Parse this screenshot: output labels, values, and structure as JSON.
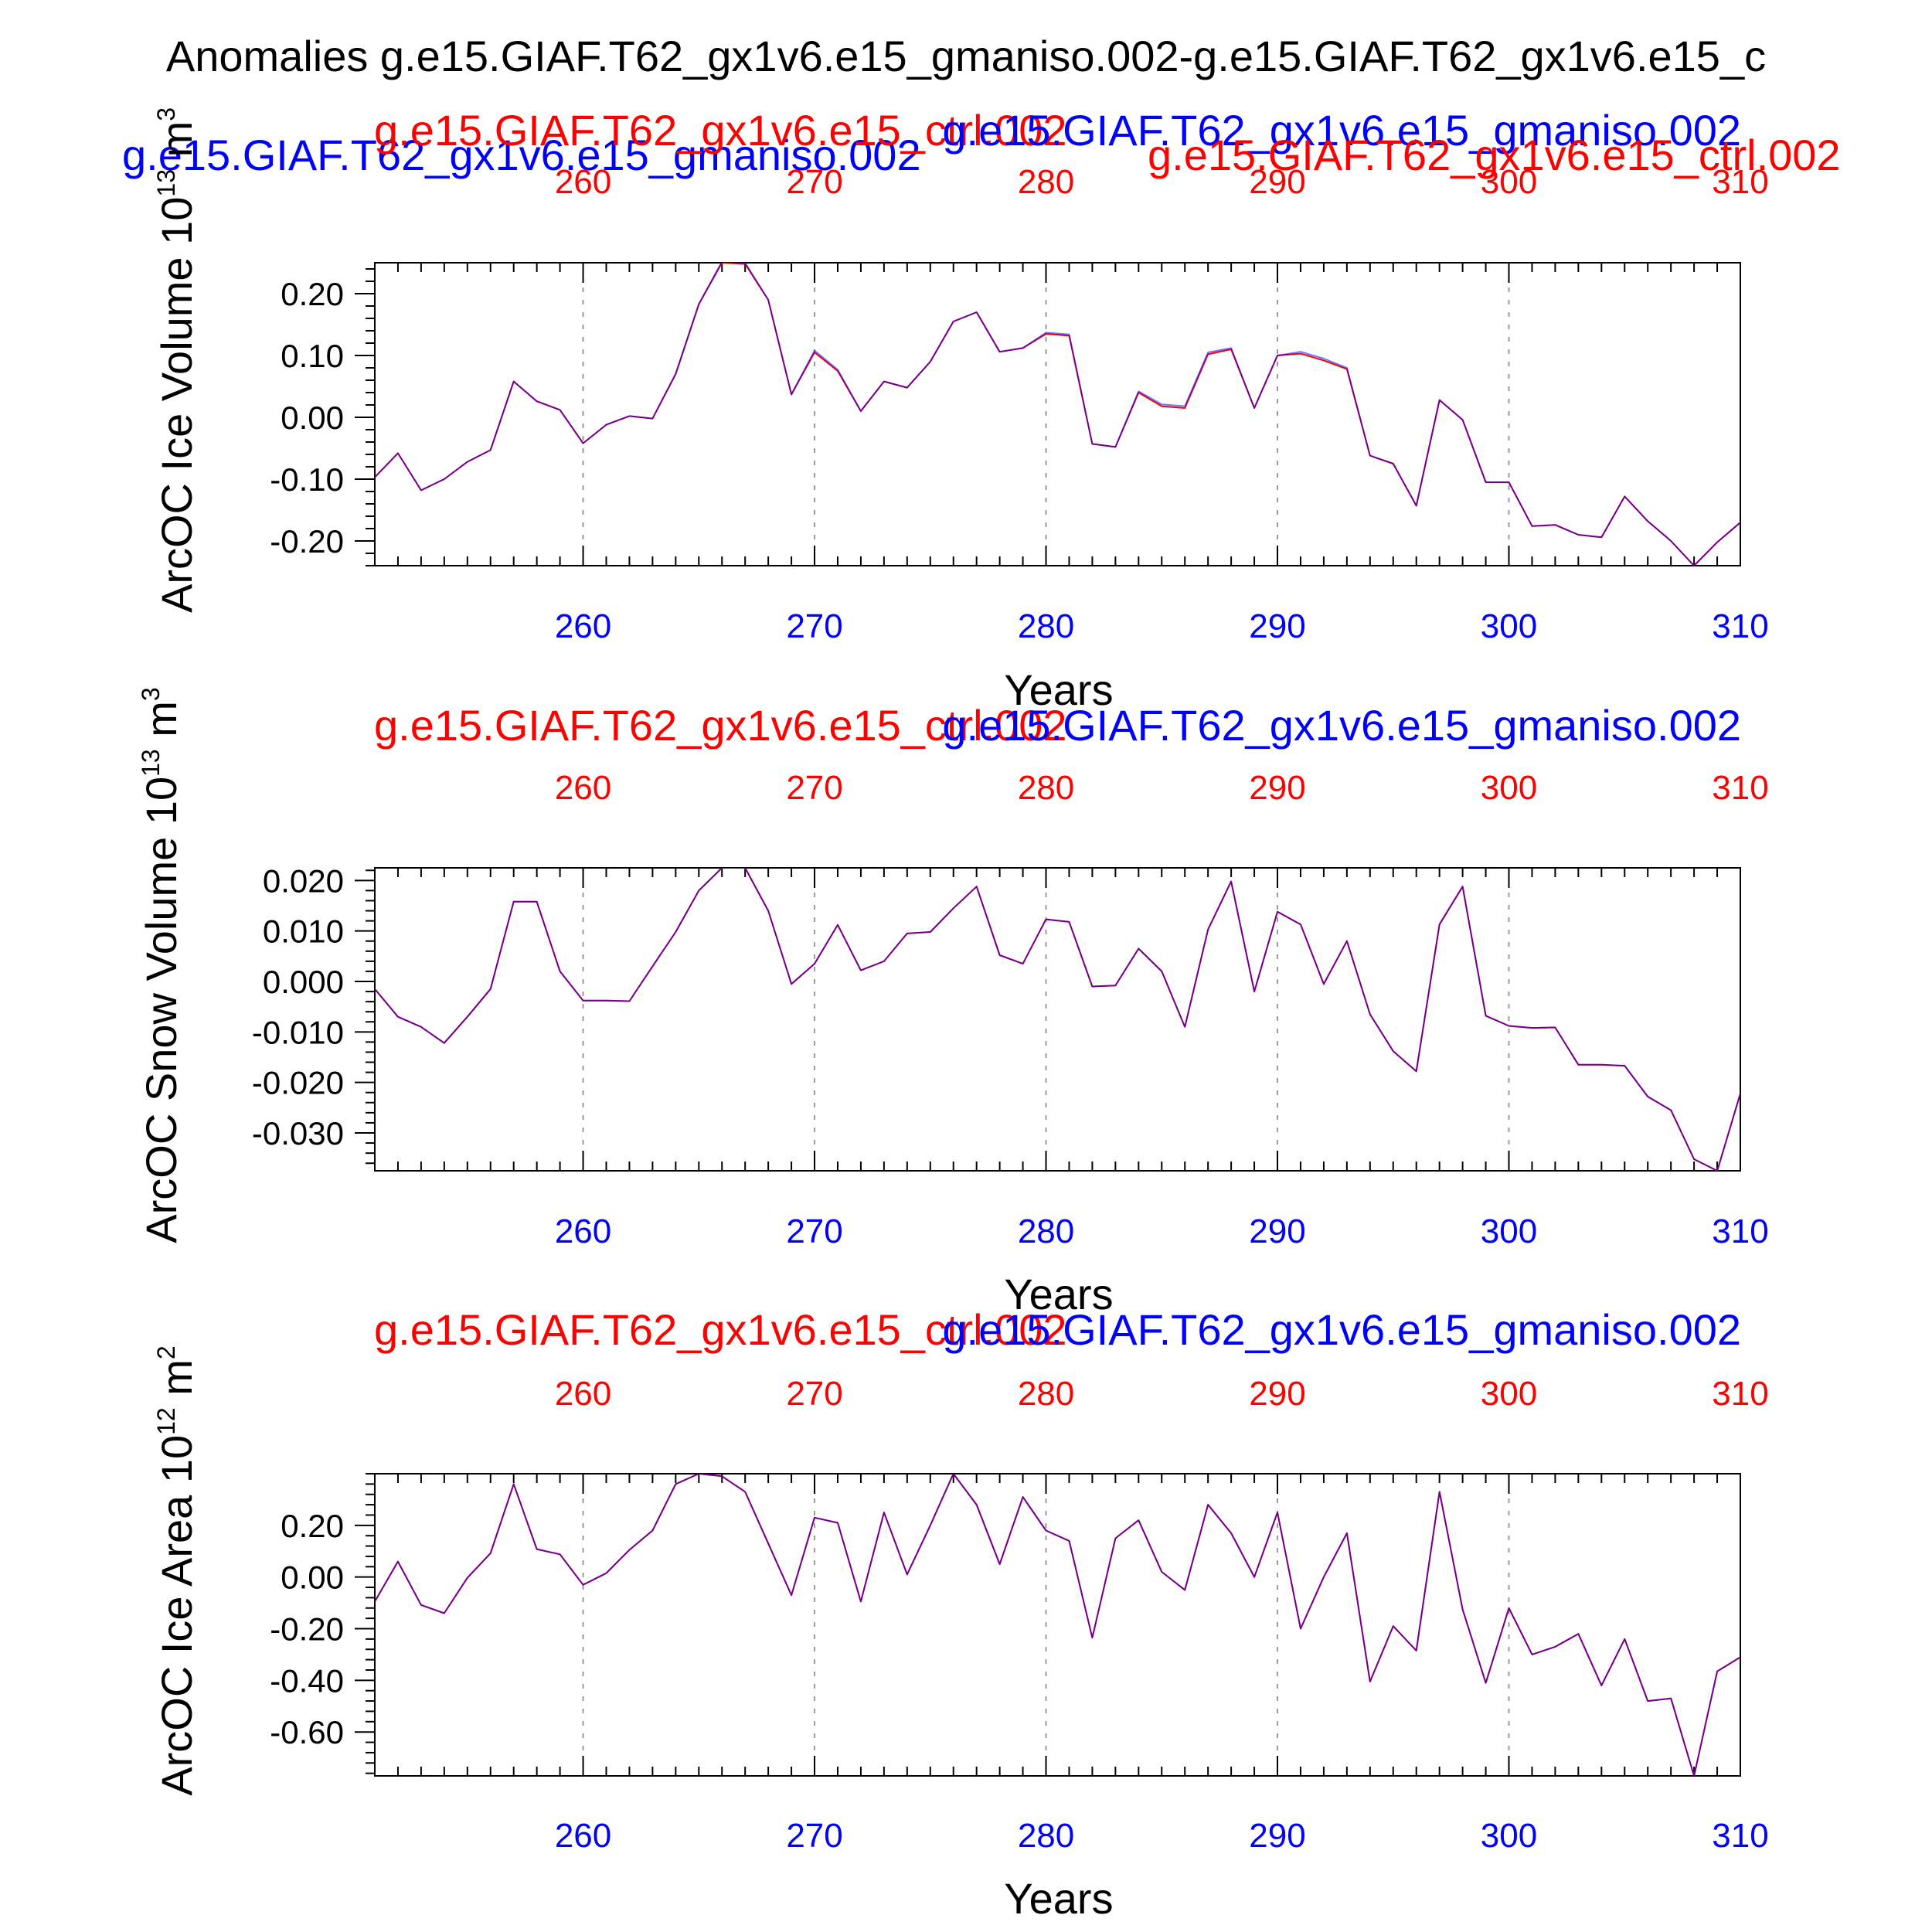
{
  "figure": {
    "title": "Anomalies g.e15.GIAF.T62_gx1v6.e15_gmaniso.002-g.e15.GIAF.T62_gx1v6.e15_c",
    "run_labels": {
      "test": "g.e15.GIAF.T62_gx1v6.e15_gmaniso.002",
      "control": "g.e15.GIAF.T62_gx1v6.e15_ctrl.002",
      "test_color": "#0000ff",
      "control_color": "#ff0000"
    }
  },
  "chart_data": [
    {
      "type": "line",
      "xlabel": "Years",
      "ylabel": "ArcOC Ice Volume 10",
      "ylabel_exp": "13",
      "ylabel_unit": "m",
      "ylabel_unit_exp": "3",
      "xlim": [
        251,
        310
      ],
      "ylim": [
        -0.24,
        0.25
      ],
      "xticks": [
        260,
        270,
        280,
        290,
        300,
        310
      ],
      "yticks": [
        0.2,
        0.1,
        0.0,
        -0.1,
        -0.2
      ],
      "yticklabels": [
        "0.20",
        "0.10",
        "0.00",
        "-0.10",
        "-0.20"
      ],
      "yminor": 0.02,
      "grid": "dashed vertical at major x ticks",
      "x": [
        251,
        252,
        253,
        254,
        255,
        256,
        257,
        258,
        259,
        260,
        261,
        262,
        263,
        264,
        265,
        266,
        267,
        268,
        269,
        270,
        271,
        272,
        273,
        274,
        275,
        276,
        277,
        278,
        279,
        280,
        281,
        282,
        283,
        284,
        285,
        286,
        287,
        288,
        289,
        290,
        291,
        292,
        293,
        294,
        295,
        296,
        297,
        298,
        299,
        300,
        301,
        302,
        303,
        304,
        305,
        306,
        307,
        308,
        309,
        310
      ],
      "series": [
        {
          "name": "g.e15.GIAF.T62_gx1v6.e15_ctrl.002",
          "color": "#ff0000",
          "values": [
            -0.097,
            -0.058,
            -0.118,
            -0.1,
            -0.072,
            -0.053,
            0.058,
            0.026,
            0.012,
            -0.042,
            -0.012,
            0.002,
            -0.002,
            0.07,
            0.183,
            0.25,
            0.248,
            0.19,
            0.037,
            0.105,
            0.075,
            0.01,
            0.058,
            0.048,
            0.09,
            0.155,
            0.17,
            0.106,
            0.112,
            0.135,
            0.132,
            -0.043,
            -0.048,
            0.04,
            0.018,
            0.015,
            0.102,
            0.11,
            0.015,
            0.1,
            0.103,
            0.092,
            0.078,
            -0.062,
            -0.075,
            -0.143,
            0.028,
            -0.004,
            -0.105,
            -0.105,
            -0.176,
            -0.174,
            -0.19,
            -0.194,
            -0.128,
            -0.168,
            -0.2,
            -0.24,
            -0.202,
            -0.17
          ]
        },
        {
          "name": "g.e15.GIAF.T62_gx1v6.e15_gmaniso.002",
          "color": "#0000ff",
          "values": [
            -0.097,
            -0.058,
            -0.118,
            -0.1,
            -0.072,
            -0.053,
            0.058,
            0.026,
            0.012,
            -0.042,
            -0.012,
            0.002,
            -0.002,
            0.07,
            0.183,
            0.252,
            0.25,
            0.19,
            0.037,
            0.108,
            0.077,
            0.01,
            0.058,
            0.048,
            0.09,
            0.155,
            0.17,
            0.106,
            0.112,
            0.137,
            0.134,
            -0.043,
            -0.048,
            0.042,
            0.021,
            0.018,
            0.105,
            0.112,
            0.015,
            0.1,
            0.106,
            0.095,
            0.08,
            -0.062,
            -0.075,
            -0.143,
            0.028,
            -0.004,
            -0.105,
            -0.105,
            -0.176,
            -0.174,
            -0.19,
            -0.194,
            -0.128,
            -0.168,
            -0.2,
            -0.24,
            -0.202,
            -0.17
          ]
        }
      ]
    },
    {
      "type": "line",
      "xlabel": "Years",
      "ylabel": "ArcOC Snow Volume 10",
      "ylabel_exp": "13",
      "ylabel_unit": "m",
      "ylabel_unit_exp": "3",
      "xlim": [
        251,
        310
      ],
      "ylim": [
        -0.0375,
        0.0225
      ],
      "xticks": [
        260,
        270,
        280,
        290,
        300,
        310
      ],
      "yticks": [
        0.02,
        0.01,
        0.0,
        -0.01,
        -0.02,
        -0.03
      ],
      "yticklabels": [
        "0.020",
        "0.010",
        "0.000",
        "-0.010",
        "-0.020",
        "-0.030"
      ],
      "yminor": 0.002,
      "grid": "dashed vertical at major x ticks",
      "x": [
        251,
        252,
        253,
        254,
        255,
        256,
        257,
        258,
        259,
        260,
        261,
        262,
        263,
        264,
        265,
        266,
        267,
        268,
        269,
        270,
        271,
        272,
        273,
        274,
        275,
        276,
        277,
        278,
        279,
        280,
        281,
        282,
        283,
        284,
        285,
        286,
        287,
        288,
        289,
        290,
        291,
        292,
        293,
        294,
        295,
        296,
        297,
        298,
        299,
        300,
        301,
        302,
        303,
        304,
        305,
        306,
        307,
        308,
        309,
        310
      ],
      "series": [
        {
          "name": "g.e15.GIAF.T62_gx1v6.e15_ctrl.002",
          "color": "#ff0000",
          "values": [
            -0.0015,
            -0.007,
            -0.009,
            -0.0122,
            -0.007,
            -0.0015,
            0.0158,
            0.0158,
            0.002,
            -0.0038,
            -0.0038,
            -0.0039,
            0.003,
            0.0098,
            0.018,
            0.0225,
            0.0225,
            0.014,
            -0.0005,
            0.0035,
            0.0112,
            0.0022,
            0.004,
            0.0095,
            0.0098,
            0.0145,
            0.0188,
            0.0052,
            0.0035,
            0.0123,
            0.0118,
            -0.001,
            -0.0008,
            0.0065,
            0.002,
            -0.009,
            0.0103,
            0.0198,
            -0.002,
            0.0138,
            0.0113,
            -0.0005,
            0.008,
            -0.0065,
            -0.0138,
            -0.0178,
            0.0113,
            0.0188,
            -0.0068,
            -0.0088,
            -0.0092,
            -0.0091,
            -0.0165,
            -0.0165,
            -0.0167,
            -0.0228,
            -0.0255,
            -0.0352,
            -0.0375,
            -0.0222
          ]
        },
        {
          "name": "g.e15.GIAF.T62_gx1v6.e15_gmaniso.002",
          "color": "#0000ff",
          "values": [
            -0.0015,
            -0.007,
            -0.009,
            -0.0122,
            -0.007,
            -0.0015,
            0.0158,
            0.0158,
            0.002,
            -0.0038,
            -0.0038,
            -0.0039,
            0.003,
            0.0098,
            0.018,
            0.0225,
            0.0225,
            0.014,
            -0.0005,
            0.0035,
            0.0112,
            0.0022,
            0.004,
            0.0095,
            0.0098,
            0.0145,
            0.0188,
            0.0052,
            0.0035,
            0.0123,
            0.0118,
            -0.001,
            -0.0008,
            0.0065,
            0.002,
            -0.009,
            0.0103,
            0.0198,
            -0.002,
            0.0138,
            0.0113,
            -0.0005,
            0.008,
            -0.0065,
            -0.0138,
            -0.0178,
            0.0113,
            0.0188,
            -0.0068,
            -0.0088,
            -0.0092,
            -0.0091,
            -0.0165,
            -0.0165,
            -0.0167,
            -0.0228,
            -0.0255,
            -0.0352,
            -0.0375,
            -0.0222
          ]
        }
      ]
    },
    {
      "type": "line",
      "xlabel": "Years",
      "ylabel": "ArcOC Ice Area 10",
      "ylabel_exp": "12",
      "ylabel_unit": "m",
      "ylabel_unit_exp": "2",
      "xlim": [
        251,
        310
      ],
      "ylim": [
        -0.77,
        0.4
      ],
      "xticks": [
        260,
        270,
        280,
        290,
        300,
        310
      ],
      "yticks": [
        0.2,
        0.0,
        -0.2,
        -0.4,
        -0.6
      ],
      "yticklabels": [
        "0.20",
        "0.00",
        "-0.20",
        "-0.40",
        "-0.60"
      ],
      "yminor": 0.04,
      "grid": "dashed vertical at major x ticks",
      "x": [
        251,
        252,
        253,
        254,
        255,
        256,
        257,
        258,
        259,
        260,
        261,
        262,
        263,
        264,
        265,
        266,
        267,
        268,
        269,
        270,
        271,
        272,
        273,
        274,
        275,
        276,
        277,
        278,
        279,
        280,
        281,
        282,
        283,
        284,
        285,
        286,
        287,
        288,
        289,
        290,
        291,
        292,
        293,
        294,
        295,
        296,
        297,
        298,
        299,
        300,
        301,
        302,
        303,
        304,
        305,
        306,
        307,
        308,
        309,
        310
      ],
      "series": [
        {
          "name": "g.e15.GIAF.T62_gx1v6.e15_ctrl.002",
          "color": "#ff0000",
          "values": [
            -0.095,
            0.06,
            -0.108,
            -0.14,
            -0.003,
            0.092,
            0.36,
            0.108,
            0.088,
            -0.03,
            0.015,
            0.105,
            0.18,
            0.36,
            0.4,
            0.39,
            0.33,
            0.13,
            -0.07,
            0.23,
            0.21,
            -0.095,
            0.25,
            0.01,
            0.2,
            0.4,
            0.28,
            0.05,
            0.31,
            0.18,
            0.14,
            -0.235,
            0.15,
            0.22,
            0.02,
            -0.05,
            0.28,
            0.17,
            0.0,
            0.25,
            -0.2,
            0.0,
            0.17,
            -0.405,
            -0.19,
            -0.285,
            0.33,
            -0.125,
            -0.41,
            -0.12,
            -0.3,
            -0.27,
            -0.22,
            -0.42,
            -0.24,
            -0.48,
            -0.47,
            -0.77,
            -0.365,
            -0.31
          ]
        },
        {
          "name": "g.e15.GIAF.T62_gx1v6.e15_gmaniso.002",
          "color": "#0000ff",
          "values": [
            -0.095,
            0.06,
            -0.108,
            -0.14,
            -0.003,
            0.092,
            0.36,
            0.108,
            0.088,
            -0.03,
            0.015,
            0.105,
            0.18,
            0.36,
            0.4,
            0.39,
            0.33,
            0.13,
            -0.07,
            0.23,
            0.21,
            -0.095,
            0.25,
            0.01,
            0.2,
            0.4,
            0.28,
            0.05,
            0.31,
            0.18,
            0.14,
            -0.235,
            0.15,
            0.22,
            0.02,
            -0.05,
            0.28,
            0.17,
            0.0,
            0.25,
            -0.2,
            0.0,
            0.17,
            -0.405,
            -0.19,
            -0.285,
            0.33,
            -0.125,
            -0.41,
            -0.12,
            -0.3,
            -0.27,
            -0.22,
            -0.42,
            -0.24,
            -0.48,
            -0.47,
            -0.77,
            -0.365,
            -0.31
          ]
        }
      ]
    }
  ]
}
